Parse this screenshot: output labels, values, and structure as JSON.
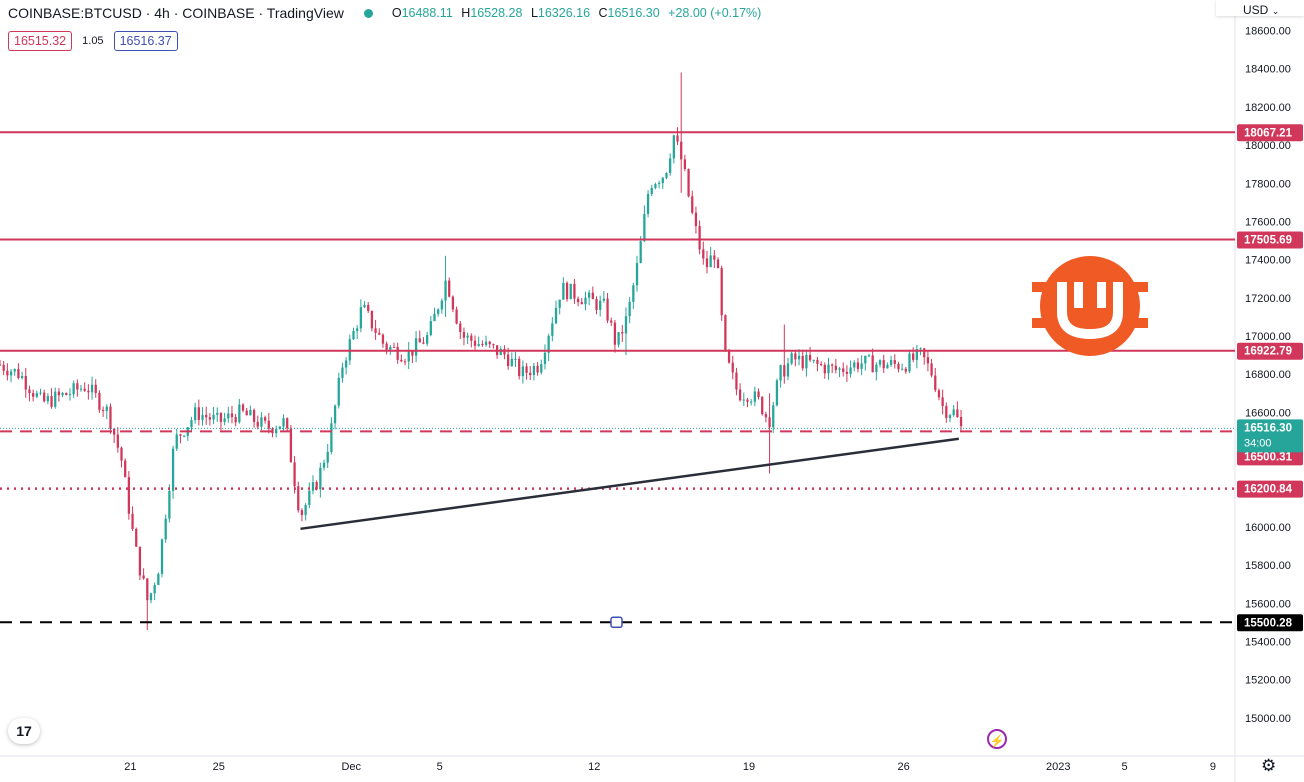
{
  "header": {
    "symbol": "COINBASE:BTCUSD · 4h · COINBASE · TradingView",
    "open_label": "O",
    "open": "16488.11",
    "high_label": "H",
    "high": "16528.28",
    "low_label": "L",
    "low": "16326.16",
    "close_label": "C",
    "close": "16516.30",
    "change": "+28.00 (+0.17%)",
    "status_color": "#26a69a"
  },
  "quote": {
    "sell": "16515.32",
    "spread": "1.05",
    "buy": "16516.37"
  },
  "currency": "USD",
  "icons": [
    "tradingview-logo-icon",
    "lightning-icon",
    "gear-icon",
    "chevron-down-icon",
    "bitcoin-logo-icon"
  ],
  "chart_data": {
    "type": "candlestick",
    "title": "",
    "xlabel": "",
    "ylabel": "",
    "ylim": [
      14800,
      18760
    ],
    "y_ticks": [
      "18600.00",
      "18400.00",
      "18200.00",
      "18000.00",
      "17800.00",
      "17600.00",
      "17400.00",
      "17200.00",
      "17000.00",
      "16800.00",
      "16600.00",
      "16400.00",
      "16200.00",
      "16000.00",
      "15800.00",
      "15600.00",
      "15400.00",
      "15200.00",
      "15000.00"
    ],
    "x_ticks": [
      {
        "label": "21",
        "day": 21
      },
      {
        "label": "25",
        "day": 25
      },
      {
        "label": "Dec",
        "day": 31
      },
      {
        "label": "5",
        "day": 35
      },
      {
        "label": "12",
        "day": 42
      },
      {
        "label": "19",
        "day": 49
      },
      {
        "label": "26",
        "day": 56
      },
      {
        "label": "2023",
        "day": 63
      },
      {
        "label": "5",
        "day": 66
      },
      {
        "label": "9",
        "day": 70
      }
    ],
    "x_range_days": [
      15.1,
      71.0
    ],
    "horizontal_levels": [
      {
        "value": 18067.21,
        "label": "18067.21",
        "color": "#d1375a",
        "style": "solid"
      },
      {
        "value": 17505.69,
        "label": "17505.69",
        "color": "#d1375a",
        "style": "solid"
      },
      {
        "value": 16922.79,
        "label": "16922.79",
        "color": "#d1375a",
        "style": "solid"
      },
      {
        "value": 16500.31,
        "label": "16500.31",
        "color": "#d1375a",
        "style": "dashed"
      },
      {
        "value": 16200.84,
        "label": "16200.84",
        "color": "#d1375a",
        "style": "dotted"
      },
      {
        "value": 15500.28,
        "label": "15500.28",
        "color": "#000000",
        "style": "dashed"
      }
    ],
    "last_price": {
      "value": 16516.3,
      "label": "16516.30",
      "countdown": "34:00",
      "color": "#26a69a"
    },
    "trendline": {
      "from": {
        "day": 28.7,
        "price": 15990
      },
      "to": {
        "day": 58.5,
        "price": 16462
      },
      "color": "#2a2e39"
    },
    "anchors": [
      {
        "day": 15.1,
        "price": 16850
      },
      {
        "day": 16.0,
        "price": 16800
      },
      {
        "day": 17.0,
        "price": 16650
      },
      {
        "day": 18.0,
        "price": 16690
      },
      {
        "day": 19.0,
        "price": 16740
      },
      {
        "day": 20.0,
        "price": 16600
      },
      {
        "day": 20.6,
        "price": 16350
      },
      {
        "day": 21.2,
        "price": 15900
      },
      {
        "day": 21.8,
        "price": 15600
      },
      {
        "day": 22.3,
        "price": 15800
      },
      {
        "day": 23.0,
        "price": 16450
      },
      {
        "day": 24.0,
        "price": 16600
      },
      {
        "day": 25.0,
        "price": 16550
      },
      {
        "day": 26.0,
        "price": 16600
      },
      {
        "day": 27.2,
        "price": 16520
      },
      {
        "day": 28.0,
        "price": 16550
      },
      {
        "day": 28.7,
        "price": 16060
      },
      {
        "day": 29.5,
        "price": 16250
      },
      {
        "day": 30.0,
        "price": 16450
      },
      {
        "day": 30.6,
        "price": 16850
      },
      {
        "day": 31.5,
        "price": 17150
      },
      {
        "day": 32.5,
        "price": 16950
      },
      {
        "day": 33.5,
        "price": 16900
      },
      {
        "day": 34.5,
        "price": 17000
      },
      {
        "day": 35.3,
        "price": 17300
      },
      {
        "day": 36.0,
        "price": 17000
      },
      {
        "day": 37.0,
        "price": 16950
      },
      {
        "day": 38.0,
        "price": 16900
      },
      {
        "day": 38.7,
        "price": 16800
      },
      {
        "day": 39.5,
        "price": 16850
      },
      {
        "day": 40.5,
        "price": 17250
      },
      {
        "day": 41.5,
        "price": 17200
      },
      {
        "day": 42.5,
        "price": 17150
      },
      {
        "day": 43.0,
        "price": 16950
      },
      {
        "day": 43.5,
        "price": 17100
      },
      {
        "day": 44.0,
        "price": 17400
      },
      {
        "day": 44.5,
        "price": 17800
      },
      {
        "day": 45.2,
        "price": 17850
      },
      {
        "day": 45.6,
        "price": 18050
      },
      {
        "day": 46.0,
        "price": 17900
      },
      {
        "day": 46.4,
        "price": 17650
      },
      {
        "day": 47.0,
        "price": 17350
      },
      {
        "day": 47.5,
        "price": 17450
      },
      {
        "day": 47.9,
        "price": 16900
      },
      {
        "day": 48.5,
        "price": 16700
      },
      {
        "day": 49.0,
        "price": 16700
      },
      {
        "day": 49.5,
        "price": 16650
      },
      {
        "day": 49.9,
        "price": 16550
      },
      {
        "day": 50.4,
        "price": 16800
      },
      {
        "day": 51.0,
        "price": 16880
      },
      {
        "day": 52.0,
        "price": 16850
      },
      {
        "day": 53.0,
        "price": 16820
      },
      {
        "day": 54.0,
        "price": 16860
      },
      {
        "day": 55.0,
        "price": 16850
      },
      {
        "day": 56.0,
        "price": 16850
      },
      {
        "day": 56.8,
        "price": 16900
      },
      {
        "day": 57.3,
        "price": 16800
      },
      {
        "day": 57.8,
        "price": 16620
      },
      {
        "day": 58.3,
        "price": 16600
      },
      {
        "day": 58.6,
        "price": 16516
      }
    ],
    "highlights": [
      {
        "day": 45.9,
        "high": 18380,
        "low": 17750
      },
      {
        "day": 21.8,
        "high": 15700,
        "low": 15460
      },
      {
        "day": 49.9,
        "high": 16700,
        "low": 16280
      },
      {
        "day": 43.5,
        "high": 17150,
        "low": 16900
      },
      {
        "day": 35.3,
        "high": 17420,
        "low": 17100
      },
      {
        "day": 50.6,
        "high": 17060,
        "low": 16750
      }
    ]
  }
}
